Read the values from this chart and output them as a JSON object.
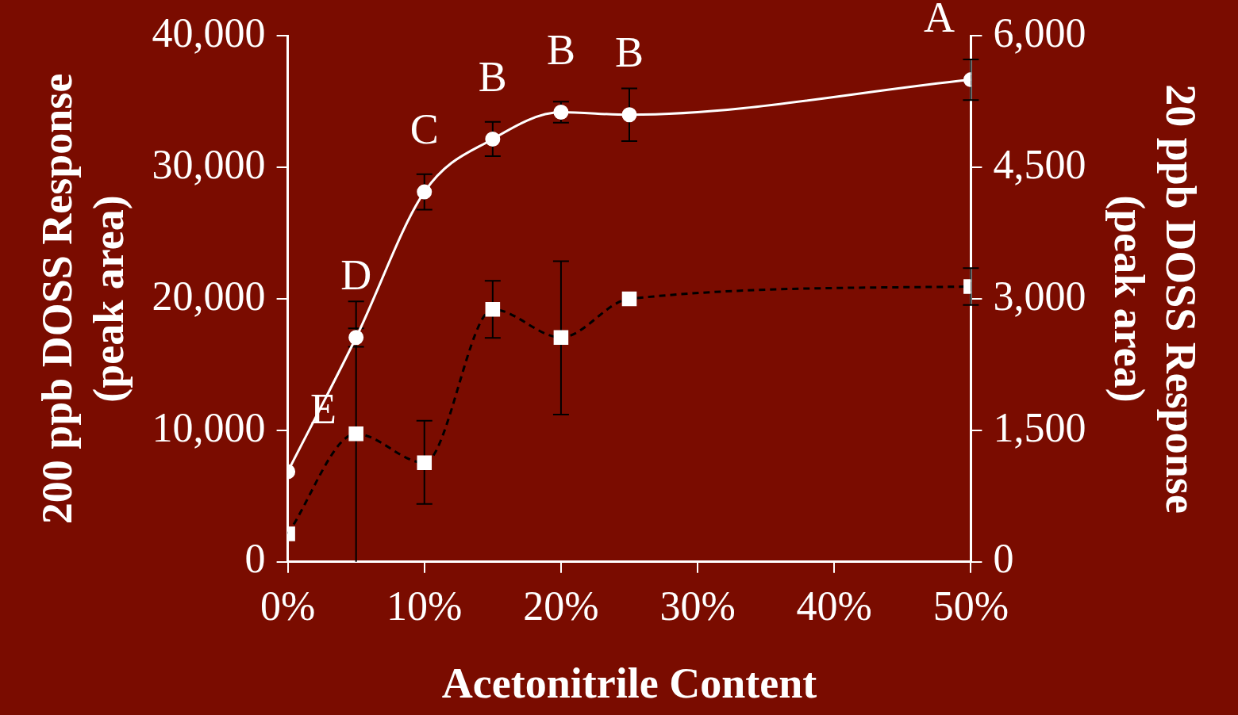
{
  "chart_data": {
    "type": "line",
    "xlabel": "Acetonitrile Content",
    "ylabel": "200 ppb DOSS Response\n(peak area)",
    "y2label": "20 ppb DOSS Response\n(peak area)",
    "x": [
      0,
      5,
      10,
      15,
      20,
      25,
      50
    ],
    "xlim": [
      0,
      50
    ],
    "xticks": [
      {
        "value": 0,
        "label": "0%"
      },
      {
        "value": 10,
        "label": "10%"
      },
      {
        "value": 20,
        "label": "20%"
      },
      {
        "value": 30,
        "label": "30%"
      },
      {
        "value": 40,
        "label": "40%"
      },
      {
        "value": 50,
        "label": "50%"
      }
    ],
    "ylim": [
      0,
      40000
    ],
    "yticks": [
      0,
      {
        "value": 10000,
        "label": "10,000"
      },
      {
        "value": 20000,
        "label": "20,000"
      },
      {
        "value": 30000,
        "label": "30,000"
      },
      {
        "value": 40000,
        "label": "40,000"
      }
    ],
    "y2lim": [
      0,
      6000
    ],
    "y2ticks": [
      0,
      {
        "value": 1500,
        "label": "1,500"
      },
      {
        "value": 3000,
        "label": "3,000"
      },
      {
        "value": 4500,
        "label": "4,500"
      },
      {
        "value": 6000,
        "label": "6,000"
      }
    ],
    "grid": false,
    "legend": false,
    "series": [
      {
        "color": "#ffffff",
        "marker": "circle",
        "line_style": "solid",
        "values": [
          6860,
          17060,
          28130,
          32150,
          34190,
          34000,
          36660
        ],
        "errors": [
          null,
          700,
          1350,
          1300,
          800,
          2000,
          1550
        ]
      },
      {
        "color": "#000000",
        "colors": [
          "#ffffff",
          "#ffffff",
          "#ffffff",
          "#ffffff",
          "#ffffff",
          "#ffffff",
          "#ffffff"
        ],
        "marker": "square",
        "line_style": "dashed",
        "axis": "y2",
        "values": [
          320,
          1460,
          1130,
          2880,
          2560,
          3000,
          3140
        ],
        "errors": [
          null,
          [
            0,
            2970
          ],
          [
            660,
            1610
          ],
          325,
          [
            1680,
            3430
          ],
          null,
          210
        ]
      }
    ],
    "annotations": [
      {
        "text": "E",
        "x": 0,
        "y": 6860
      },
      {
        "text": "D",
        "x": 5,
        "y": 17060
      },
      {
        "text": "C",
        "x": 10,
        "y": 28130
      },
      {
        "text": "B",
        "x": 15,
        "y": 32150
      },
      {
        "text": "B",
        "x": 20,
        "y": 34190
      },
      {
        "text": "B",
        "x": 25,
        "y": 34000
      },
      {
        "text": "A",
        "x": 50,
        "y": 36660
      }
    ]
  }
}
